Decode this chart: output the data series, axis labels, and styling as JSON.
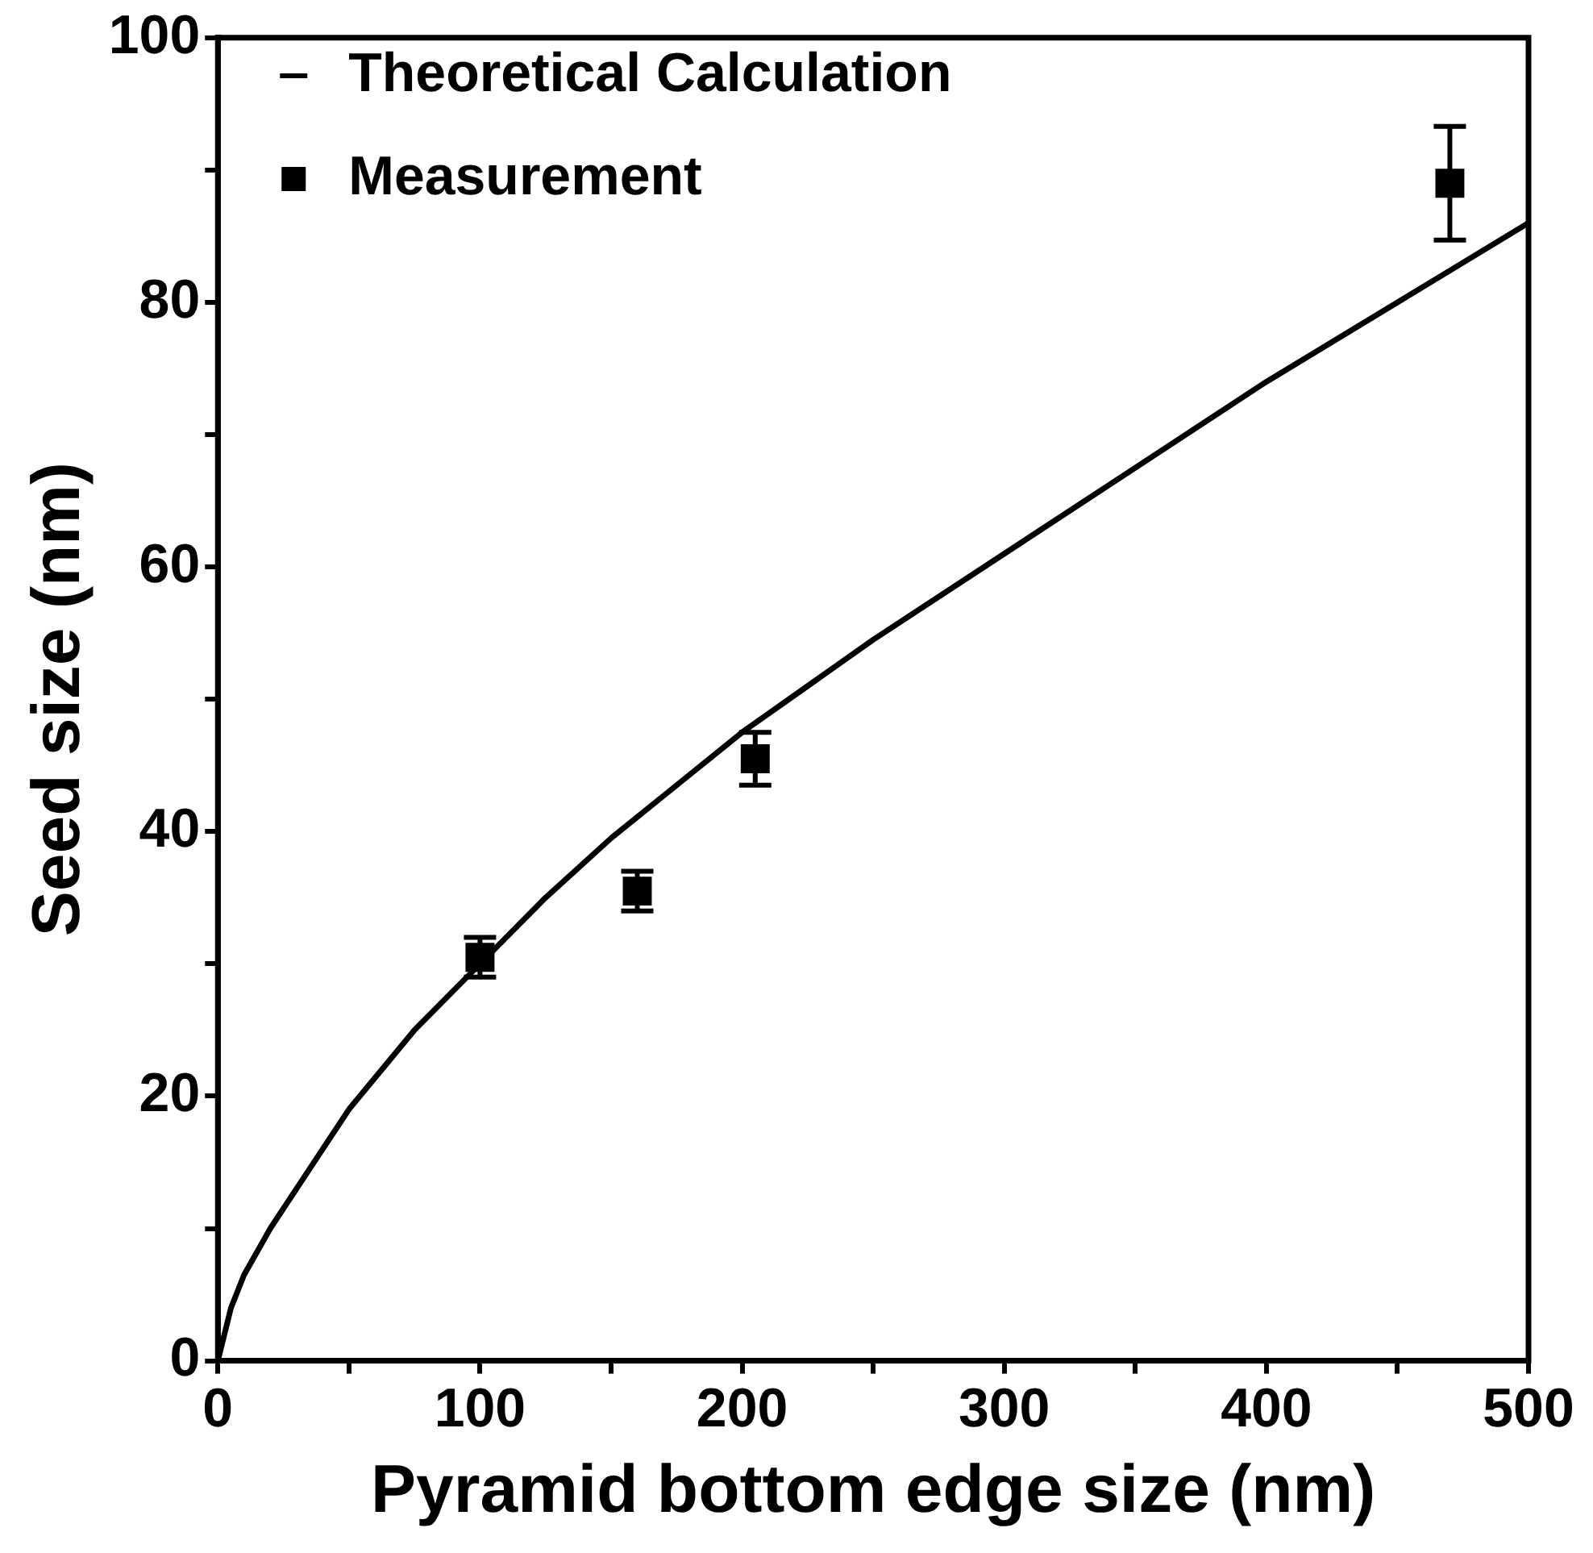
{
  "chart_data": {
    "type": "scatter",
    "xlabel": "Pyramid bottom edge size (nm)",
    "ylabel": "Seed size (nm)",
    "xlim": [
      0,
      500
    ],
    "ylim": [
      0,
      100
    ],
    "xticks": [
      0,
      {
        "value": 50,
        "label": null
      },
      100,
      {
        "value": 150,
        "label": null
      },
      200,
      {
        "value": 250,
        "label": null
      },
      300,
      {
        "value": 350,
        "label": null
      },
      400,
      {
        "value": 450,
        "label": null
      },
      500
    ],
    "yticks": [
      0,
      {
        "value": 10,
        "label": null
      },
      20,
      {
        "value": 30,
        "label": null
      },
      40,
      {
        "value": 50,
        "label": null
      },
      60,
      {
        "value": 70,
        "label": null
      },
      80,
      {
        "value": 90,
        "label": null
      },
      100
    ],
    "grid": false,
    "legend": "top left",
    "series": [
      {
        "name": "Theoretical Calculation",
        "type": "line",
        "color": "#000000",
        "marker": "none",
        "line_style": "solid",
        "x": [
          0,
          5,
          10,
          20,
          35,
          50,
          75,
          100,
          125,
          150,
          175,
          200,
          250,
          300,
          350,
          400,
          450,
          500
        ],
        "values": [
          0,
          4,
          6.5,
          10,
          14.5,
          19,
          25,
          30,
          35,
          39.5,
          43.5,
          47.5,
          54.5,
          61,
          67.5,
          74,
          80,
          86
        ]
      },
      {
        "name": "Measurement",
        "color": "#000000",
        "marker": "square",
        "x": [
          100,
          160,
          205,
          470
        ],
        "values": [
          30.5,
          35.5,
          45.5,
          89
        ],
        "errors": [
          1.5,
          1.5,
          2,
          4.3
        ]
      }
    ]
  }
}
